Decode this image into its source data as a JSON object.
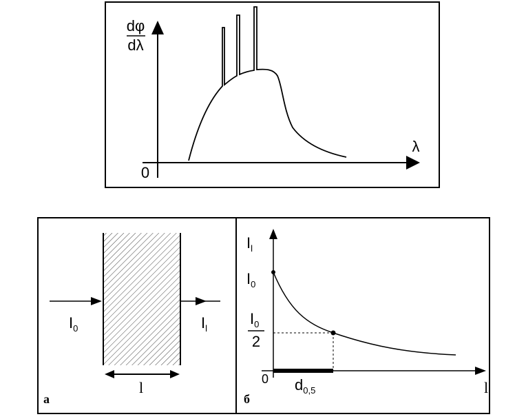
{
  "top_graph": {
    "y_label": {
      "numerator": "dφ",
      "denominator": "dλ"
    },
    "x_label": "λ",
    "origin": "0"
  },
  "panel_a": {
    "incident": {
      "main": "I",
      "sub": "0"
    },
    "transmitted": {
      "main": "I",
      "sub": "l"
    },
    "thickness": "l",
    "label": "а"
  },
  "panel_b": {
    "y_label": {
      "main": "I",
      "sub": "l"
    },
    "initial": {
      "main": "I",
      "sub": "0"
    },
    "half": {
      "numerator": {
        "main": "I",
        "sub": "0"
      },
      "denominator": "2"
    },
    "origin": "0",
    "half_thickness": {
      "main": "d",
      "sub": "0,5"
    },
    "x_label": "l",
    "label": "б"
  }
}
